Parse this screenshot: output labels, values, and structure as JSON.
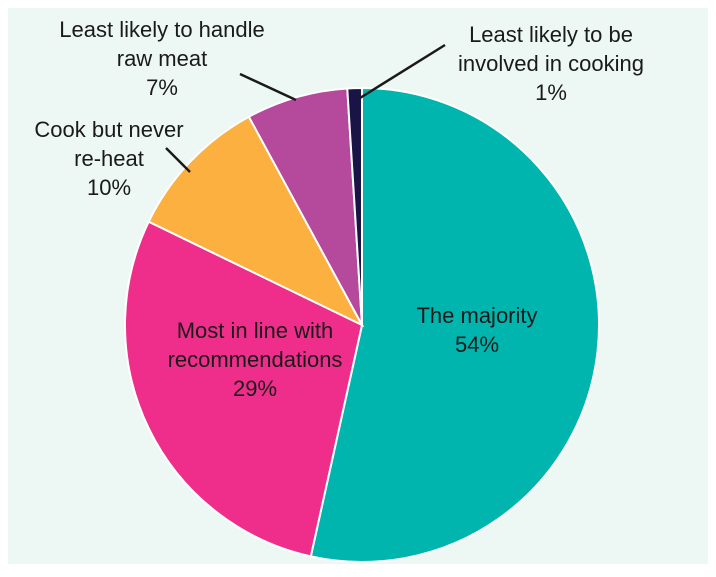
{
  "chart_data": {
    "type": "pie",
    "start_angle_deg": 0,
    "direction": "clockwise",
    "background_color": "#edf7f4",
    "slices": [
      {
        "label_lines": [
          "The majority"
        ],
        "value": 54,
        "value_label": "54%",
        "color": "#00b5ad",
        "label_placement": "inside"
      },
      {
        "label_lines": [
          "Most in line with",
          "recommendations"
        ],
        "value": 29,
        "value_label": "29%",
        "color": "#ee2e8a",
        "label_placement": "inside"
      },
      {
        "label_lines": [
          "Cook but never",
          "re-heat"
        ],
        "value": 10,
        "value_label": "10%",
        "color": "#fbb040",
        "label_placement": "outside"
      },
      {
        "label_lines": [
          "Least likely to handle",
          "raw meat"
        ],
        "value": 7,
        "value_label": "7%",
        "color": "#b5499b",
        "label_placement": "outside"
      },
      {
        "label_lines": [
          "Least likely to be",
          "involved in cooking"
        ],
        "value": 1,
        "value_label": "1%",
        "color": "#1a1446",
        "label_placement": "outside"
      }
    ]
  }
}
